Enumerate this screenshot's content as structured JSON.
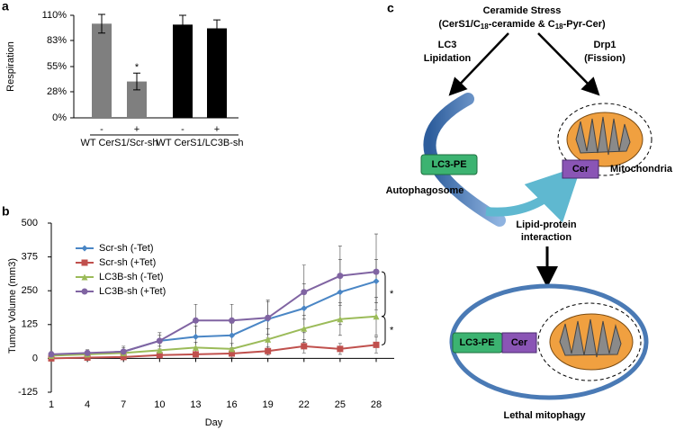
{
  "chart_data": [
    {
      "type": "bar",
      "panel": "a",
      "ylabel": "Respiration",
      "categories": [
        "-",
        "+",
        "-",
        "+"
      ],
      "group_labels": [
        "WT CerS1/Scr-sh",
        "WT CerS1/LC3B-sh"
      ],
      "values": [
        101,
        39,
        100,
        96
      ],
      "errors": [
        10,
        9,
        10,
        9
      ],
      "colors": [
        "#7f7f7f",
        "#7f7f7f",
        "#000000",
        "#000000"
      ],
      "annotation": "*",
      "ylim": [
        0,
        110
      ],
      "yticks": [
        {
          "value": 0,
          "label": "0%"
        },
        {
          "value": 28,
          "label": "28%"
        },
        {
          "value": 55,
          "label": "55%"
        },
        {
          "value": 83,
          "label": "83%"
        },
        {
          "value": 110,
          "label": "110%"
        }
      ]
    },
    {
      "type": "line",
      "panel": "b",
      "xlabel": "Day",
      "ylabel": "Tumor Volume (mm3)",
      "x": [
        1,
        4,
        7,
        10,
        13,
        16,
        19,
        22,
        25,
        28
      ],
      "series": [
        {
          "name": "Scr-sh (-Tet)",
          "color": "#4a86c5",
          "marker": "diamond",
          "values": [
            10,
            18,
            25,
            65,
            80,
            85,
            145,
            185,
            245,
            285
          ],
          "errors": [
            10,
            10,
            15,
            20,
            40,
            45,
            70,
            90,
            120,
            80
          ]
        },
        {
          "name": "Scr-sh (+Tet)",
          "color": "#c0504d",
          "marker": "square",
          "values": [
            0,
            3,
            5,
            12,
            15,
            18,
            27,
            45,
            35,
            50
          ],
          "errors": [
            5,
            5,
            5,
            10,
            10,
            15,
            15,
            25,
            20,
            30
          ]
        },
        {
          "name": "LC3B-sh (-Tet)",
          "color": "#9bbb59",
          "marker": "triangle",
          "values": [
            10,
            15,
            20,
            30,
            40,
            35,
            70,
            110,
            145,
            155
          ],
          "errors": [
            8,
            8,
            10,
            15,
            20,
            20,
            40,
            50,
            60,
            70
          ]
        },
        {
          "name": "LC3B-sh (+Tet)",
          "color": "#8064a2",
          "marker": "circle",
          "values": [
            15,
            20,
            25,
            65,
            140,
            140,
            150,
            245,
            305,
            320
          ],
          "errors": [
            10,
            12,
            20,
            30,
            60,
            60,
            60,
            100,
            110,
            140
          ]
        }
      ],
      "annotations": [
        "*",
        "*"
      ],
      "xlim": [
        1,
        28
      ],
      "xticks": [
        1,
        4,
        7,
        10,
        13,
        16,
        19,
        22,
        25,
        28
      ],
      "ylim": [
        -125,
        500
      ],
      "yticks": [
        -125,
        0,
        125,
        250,
        375,
        500
      ],
      "legend": "upper left"
    }
  ],
  "diagram": {
    "panel": "c",
    "stress_title": "Ceramide Stress",
    "stress_subtitle_parts": [
      "(CerS1/C",
      "18",
      "-ceramide & C",
      "18",
      "-Pyr-Cer)"
    ],
    "left_arrow": [
      "LC3",
      "Lipidation"
    ],
    "right_arrow": [
      "Drp1",
      "(Fission)"
    ],
    "lc3pe": "LC3-PE",
    "cer": "Cer",
    "mitochondria": "Mitochondria",
    "autophagosome": "Autophagosome",
    "interaction": [
      "Lipid-protein",
      "interaction"
    ],
    "lc3pe_bottom": "LC3-PE",
    "cer_bottom": "Cer",
    "result": "Lethal mitophagy"
  }
}
